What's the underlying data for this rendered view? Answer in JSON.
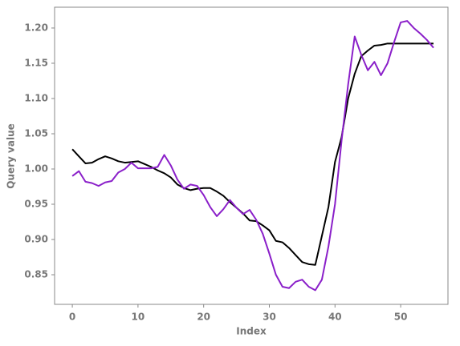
{
  "chart_data": {
    "type": "line",
    "x_label": "Index",
    "y_label": "Query value",
    "x": [
      0,
      1,
      2,
      3,
      4,
      5,
      6,
      7,
      8,
      9,
      10,
      11,
      12,
      13,
      14,
      15,
      16,
      17,
      18,
      19,
      20,
      21,
      22,
      23,
      24,
      25,
      26,
      27,
      28,
      29,
      30,
      31,
      32,
      33,
      34,
      35,
      36,
      37,
      38,
      39,
      40,
      41,
      42,
      43,
      44,
      45,
      46,
      47,
      48,
      49,
      50,
      51,
      52,
      53,
      54,
      55
    ],
    "series": [
      {
        "color": "#000000",
        "values": [
          1.028,
          1.018,
          1.008,
          1.009,
          1.014,
          1.018,
          1.015,
          1.011,
          1.009,
          1.01,
          1.011,
          1.007,
          1.003,
          0.998,
          0.994,
          0.988,
          0.978,
          0.973,
          0.97,
          0.972,
          0.973,
          0.973,
          0.968,
          0.962,
          0.953,
          0.945,
          0.937,
          0.927,
          0.926,
          0.92,
          0.913,
          0.898,
          0.896,
          0.888,
          0.878,
          0.868,
          0.865,
          0.864,
          0.905,
          0.946,
          1.01,
          1.045,
          1.1,
          1.135,
          1.16,
          1.168,
          1.175,
          1.176,
          1.178,
          1.178,
          1.178,
          1.178,
          1.178,
          1.178,
          1.178,
          1.178
        ]
      },
      {
        "color": "#8a1fc9",
        "values": [
          0.99,
          0.997,
          0.982,
          0.98,
          0.976,
          0.981,
          0.983,
          0.995,
          1.0,
          1.009,
          1.001,
          1.001,
          1.001,
          1.003,
          1.02,
          1.005,
          0.985,
          0.972,
          0.978,
          0.976,
          0.963,
          0.946,
          0.933,
          0.943,
          0.956,
          0.945,
          0.936,
          0.942,
          0.928,
          0.908,
          0.88,
          0.85,
          0.833,
          0.831,
          0.84,
          0.843,
          0.833,
          0.828,
          0.843,
          0.89,
          0.95,
          1.04,
          1.12,
          1.188,
          1.162,
          1.14,
          1.152,
          1.133,
          1.15,
          1.18,
          1.208,
          1.21,
          1.2,
          1.192,
          1.183,
          1.172
        ]
      }
    ],
    "xlim": [
      -2.7,
      57.2
    ],
    "xticks": [
      0,
      10,
      20,
      30,
      40,
      50
    ],
    "ylim": [
      0.808,
      1.2295
    ],
    "yticks": [
      0.85,
      {
        "value": 0.9,
        "label": "0.90"
      },
      0.95,
      {
        "value": 1.0,
        "label": "1.00"
      },
      1.05,
      {
        "value": 1.1,
        "label": "1.10"
      },
      1.15,
      {
        "value": 1.2,
        "label": "1.20"
      }
    ],
    "grid": false
  }
}
